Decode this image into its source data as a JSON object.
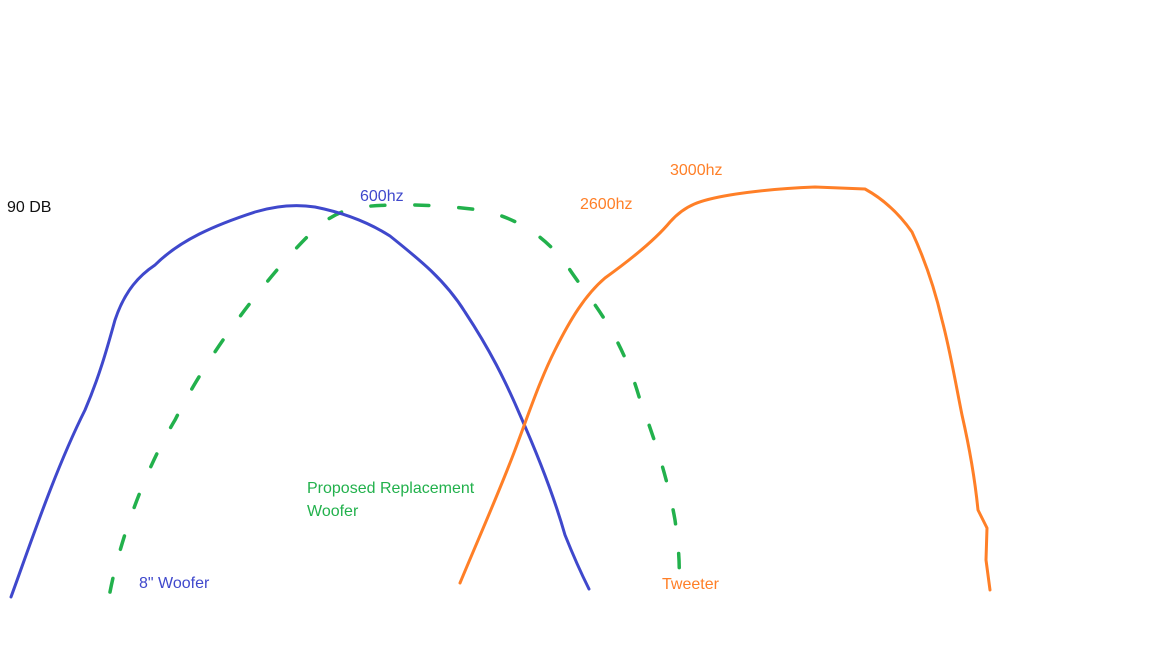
{
  "labels": {
    "level": "90 DB",
    "woofer_peak": "600hz",
    "tweeter_low": "2600hz",
    "tweeter_high": "3000hz",
    "replacement_line1": "Proposed Replacement",
    "replacement_line2": "Woofer",
    "woofer": "8\" Woofer",
    "tweeter": "Tweeter"
  },
  "colors": {
    "woofer": "#3f48cc",
    "replacement": "#22b14c",
    "tweeter": "#ff7f27",
    "text": "#111111"
  }
}
